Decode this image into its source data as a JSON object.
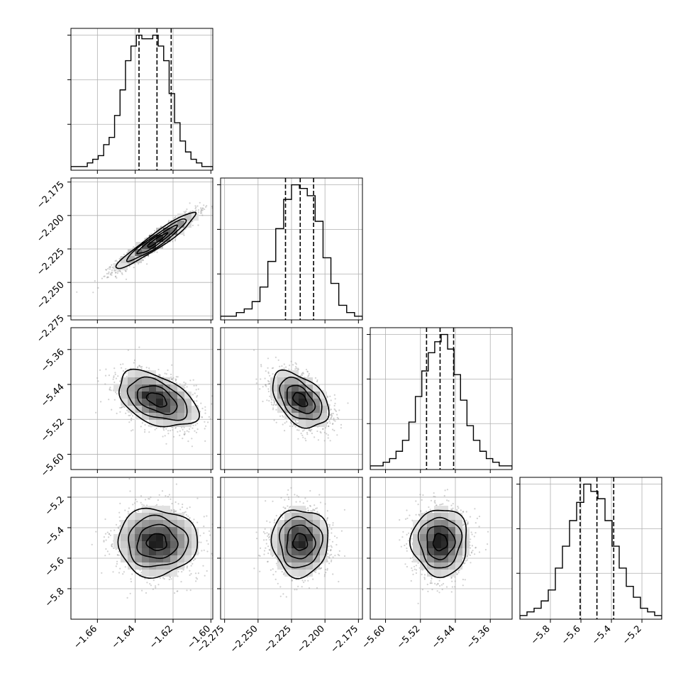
{
  "chart_data": {
    "type": "corner",
    "grid": true,
    "parameters": [
      {
        "center": -1.6285,
        "q16": -1.638,
        "q50": -1.6285,
        "q84": -1.621,
        "sigma": 0.0105,
        "range": [
          -1.674,
          -1.599
        ],
        "ticks": [
          -1.66,
          -1.64,
          -1.62,
          -1.6
        ],
        "tick_labels": [
          "−1.66",
          "−1.64",
          "−1.62",
          "−1.60"
        ],
        "hist": [
          1,
          1,
          1,
          2,
          3,
          4,
          7,
          9,
          15,
          22,
          30,
          34,
          37,
          36,
          36,
          37,
          34,
          30,
          21,
          13,
          8,
          5,
          3,
          2,
          1,
          1
        ]
      },
      {
        "center": -2.2185,
        "q16": -2.2295,
        "q50": -2.2185,
        "q84": -2.2085,
        "sigma": 0.0105,
        "range": [
          -2.278,
          -2.172
        ],
        "ticks": [
          -2.275,
          -2.25,
          -2.225,
          -2.2,
          -2.175
        ],
        "tick_labels": [
          "−2.275",
          "−2.250",
          "−2.225",
          "−2.200",
          "−2.175"
        ],
        "hist": [
          1,
          1,
          2,
          3,
          5,
          9,
          16,
          25,
          33,
          37,
          36,
          34,
          27,
          17,
          10,
          4,
          2,
          1
        ]
      },
      {
        "center": -5.475,
        "q16": -5.506,
        "q50": -5.475,
        "q84": -5.444,
        "sigma": 0.032,
        "range": [
          -5.635,
          -5.31
        ],
        "ticks": [
          -5.6,
          -5.52,
          -5.44,
          -5.36
        ],
        "tick_labels": [
          "−5.60",
          "−5.52",
          "−5.44",
          "−5.36"
        ],
        "hist": [
          1,
          1,
          2,
          3,
          5,
          8,
          13,
          20,
          27,
          32,
          35,
          37,
          33,
          26,
          19,
          12,
          8,
          5,
          3,
          2,
          1,
          1
        ]
      },
      {
        "center": -5.495,
        "q16": -5.605,
        "q50": -5.495,
        "q84": -5.385,
        "sigma": 0.11,
        "range": [
          -6.0,
          -5.07
        ],
        "ticks": [
          -5.8,
          -5.6,
          -5.4,
          -5.2
        ],
        "tick_labels": [
          "−5.8",
          "−5.6",
          "−5.4",
          "−5.2"
        ],
        "hist": [
          1,
          2,
          3,
          5,
          8,
          14,
          20,
          27,
          32,
          37,
          35,
          33,
          27,
          20,
          14,
          9,
          6,
          3,
          2,
          1
        ]
      }
    ],
    "correlations": [
      {
        "row": 1,
        "col": 0,
        "rho": 0.95
      },
      {
        "row": 2,
        "col": 0,
        "rho": -0.45
      },
      {
        "row": 2,
        "col": 1,
        "rho": -0.45
      },
      {
        "row": 3,
        "col": 0,
        "rho": 0.0
      },
      {
        "row": 3,
        "col": 1,
        "rho": 0.0
      },
      {
        "row": 3,
        "col": 2,
        "rho": 0.0
      }
    ],
    "contour_levels_sigma": [
      0.5,
      1.0,
      1.5,
      2.0
    ],
    "colors": {
      "line": "#000000",
      "grid": "#b0b0b0",
      "points": "#9a9a9a"
    }
  }
}
